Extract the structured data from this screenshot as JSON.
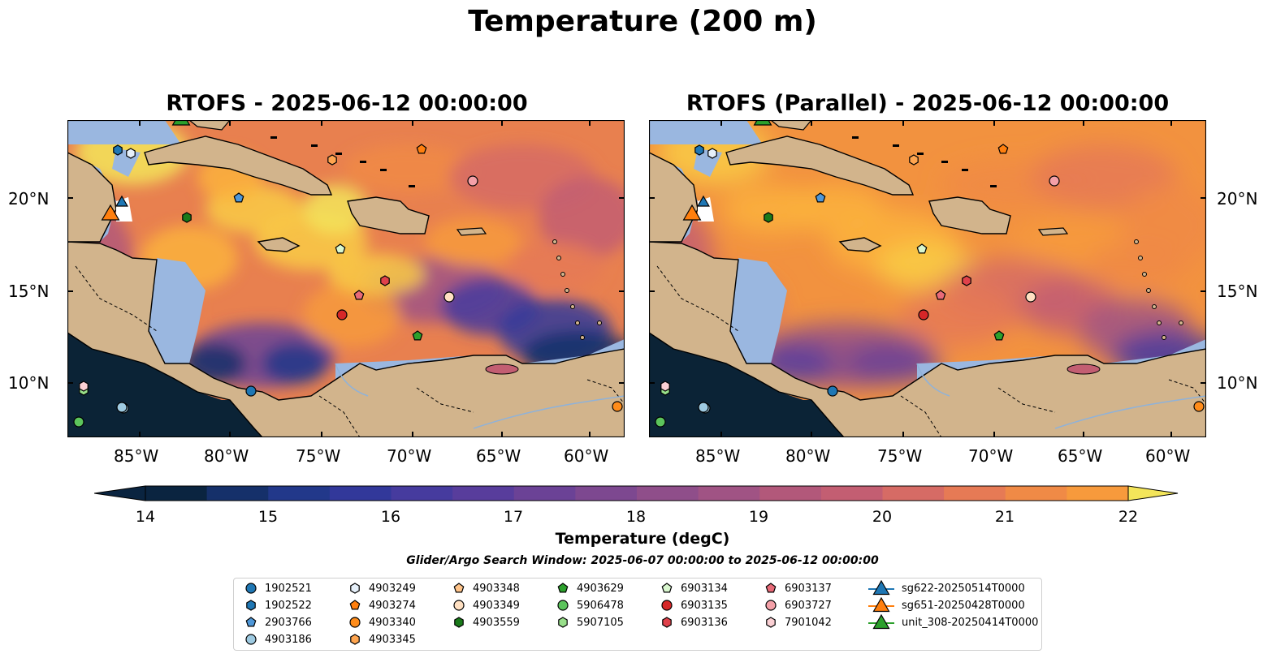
{
  "figure_title": "Temperature (200 m)",
  "panels": [
    {
      "title": "RTOFS - 2025-06-12 00:00:00"
    },
    {
      "title": "RTOFS (Parallel) - 2025-06-12 00:00:00"
    }
  ],
  "lon_ticks": [
    "85°W",
    "80°W",
    "75°W",
    "70°W",
    "65°W",
    "60°W"
  ],
  "lat_ticks": [
    "20°N",
    "15°N",
    "10°N"
  ],
  "colorbar": {
    "label": "Temperature (degC)",
    "ticks": [
      "14",
      "15",
      "16",
      "17",
      "18",
      "19",
      "20",
      "21",
      "22"
    ],
    "min": 14,
    "max": 22,
    "step": 0.5,
    "colors": [
      "#0a2440",
      "#15306a",
      "#22388a",
      "#32389a",
      "#463b9e",
      "#583d9c",
      "#6b4296",
      "#7d4890",
      "#8f4e8a",
      "#a05384",
      "#b2587a",
      "#c35e72",
      "#d66b65",
      "#e67a55",
      "#f08a46",
      "#f79a3c",
      "#fbb23d",
      "#f9cb45",
      "#f3e55a"
    ]
  },
  "search_window": "Glider/Argo Search Window: 2025-06-07 00:00:00 to 2025-06-12 00:00:00",
  "legend": [
    {
      "label": "1902521",
      "marker": "circle",
      "color": "#1f77b4"
    },
    {
      "label": "1902522",
      "marker": "hexagon",
      "color": "#1f77b4"
    },
    {
      "label": "2903766",
      "marker": "pentagon",
      "color": "#4e97d8"
    },
    {
      "label": "4903186",
      "marker": "circle",
      "color": "#9ecae1"
    },
    {
      "label": "4903249",
      "marker": "hexagon",
      "color": "#e6f0fa"
    },
    {
      "label": "4903274",
      "marker": "pentagon",
      "color": "#ff7f0e"
    },
    {
      "label": "4903340",
      "marker": "circle",
      "color": "#ff8c1a"
    },
    {
      "label": "4903345",
      "marker": "hexagon",
      "color": "#ffa54f"
    },
    {
      "label": "4903348",
      "marker": "pentagon",
      "color": "#ffc48a"
    },
    {
      "label": "4903349",
      "marker": "circle",
      "color": "#ffe0c2"
    },
    {
      "label": "4903559",
      "marker": "hexagon",
      "color": "#1a7a1a"
    },
    {
      "label": "4903629",
      "marker": "pentagon",
      "color": "#2ca02c"
    },
    {
      "label": "5906478",
      "marker": "circle",
      "color": "#5cc45c"
    },
    {
      "label": "5907105",
      "marker": "hexagon",
      "color": "#98df8a"
    },
    {
      "label": "6903134",
      "marker": "pentagon",
      "color": "#d9f7cf"
    },
    {
      "label": "6903135",
      "marker": "circle",
      "color": "#d62728"
    },
    {
      "label": "6903136",
      "marker": "hexagon",
      "color": "#e0424b"
    },
    {
      "label": "6903137",
      "marker": "pentagon",
      "color": "#e86a78"
    },
    {
      "label": "6903727",
      "marker": "circle",
      "color": "#f4a0a8"
    },
    {
      "label": "7901042",
      "marker": "hexagon",
      "color": "#fbd0d4"
    },
    {
      "label": "sg622-20250514T0000",
      "marker": "triangle",
      "color": "#1f77b4"
    },
    {
      "label": "sg651-20250428T0000",
      "marker": "triangle",
      "color": "#ff7f0e"
    },
    {
      "label": "unit_308-20250414T0000",
      "marker": "triangle",
      "color": "#2ca02c"
    }
  ],
  "colors": {
    "land": "#d2b48c",
    "shelf": "#9ab7e0",
    "pacific": "#0b2336",
    "coastline": "#000000"
  }
}
